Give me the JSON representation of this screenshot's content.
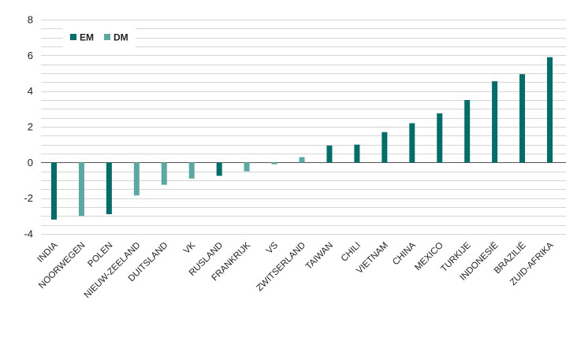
{
  "chart_data": {
    "type": "bar",
    "title": "",
    "xlabel": "",
    "ylabel": "",
    "ylim": [
      -4,
      8
    ],
    "yticks": [
      8,
      6,
      4,
      2,
      0,
      -2,
      -4
    ],
    "ytick_labels": [
      "8",
      "6",
      "4",
      "2",
      "0",
      "-2",
      "-4"
    ],
    "minor_gridline_step": 0.5,
    "legend": {
      "placement": "top-left",
      "entries": [
        {
          "key": "EM",
          "label": "EM",
          "color": "#006f6a"
        },
        {
          "key": "DM",
          "label": "DM",
          "color": "#5aaaa4"
        }
      ]
    },
    "categories": [
      "INDIA",
      "NOORWEGEN",
      "POLEN",
      "NIEUW-ZEELAND",
      "DUITSLAND",
      "VK",
      "RUSLAND",
      "FRANKRIJK",
      "VS",
      "ZWITSERLAND",
      "TAIWAN",
      "CHILI",
      "VIETNAM",
      "CHINA",
      "MEXICO",
      "TURKIJE",
      "INDONESIË",
      "BRAZILIË",
      "ZUID-AFRIKA"
    ],
    "groups": [
      "EM",
      "DM",
      "EM",
      "DM",
      "DM",
      "DM",
      "EM",
      "DM",
      "DM",
      "DM",
      "EM",
      "EM",
      "EM",
      "EM",
      "EM",
      "EM",
      "EM",
      "EM",
      "EM"
    ],
    "values": [
      -3.2,
      -3.0,
      -2.9,
      -1.85,
      -1.25,
      -0.9,
      -0.75,
      -0.5,
      -0.1,
      0.3,
      0.95,
      1.0,
      1.7,
      2.2,
      2.75,
      3.5,
      4.55,
      4.95,
      5.9
    ]
  }
}
